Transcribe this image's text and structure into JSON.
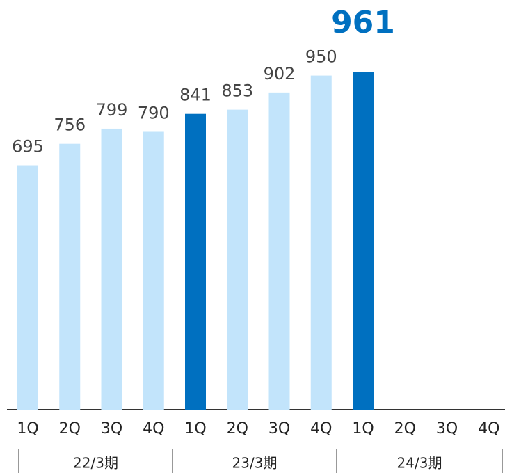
{
  "chart_data": {
    "type": "bar",
    "categories": [
      "1Q",
      "2Q",
      "3Q",
      "4Q",
      "1Q",
      "2Q",
      "3Q",
      "4Q",
      "1Q",
      "2Q",
      "3Q",
      "4Q"
    ],
    "groups": [
      "22/3期",
      "23/3期",
      "24/3期"
    ],
    "values": [
      695,
      756,
      799,
      790,
      841,
      853,
      902,
      950,
      961,
      null,
      null,
      null
    ],
    "colors": [
      "#c2e4fb",
      "#c2e4fb",
      "#c2e4fb",
      "#c2e4fb",
      "#0070c0",
      "#c2e4fb",
      "#c2e4fb",
      "#c2e4fb",
      "#0070c0",
      null,
      null,
      null
    ],
    "ylim": [
      0,
      1000
    ]
  }
}
